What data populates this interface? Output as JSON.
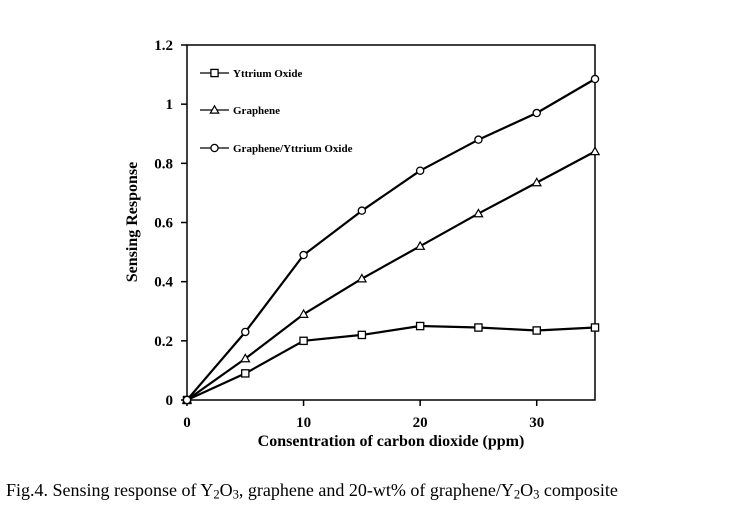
{
  "chart_data": {
    "type": "line",
    "title": "",
    "xlabel": "Consentration of carbon dioxide (ppm)",
    "ylabel": "Sensing Response",
    "xlim": [
      0,
      35
    ],
    "ylim": [
      0,
      1.2
    ],
    "xticks": [
      0,
      10,
      20,
      30
    ],
    "yticks": [
      0,
      0.2,
      0.4,
      0.6,
      0.8,
      1,
      1.2
    ],
    "xtick_labels": [
      "0",
      "10",
      "20",
      "30"
    ],
    "ytick_labels": [
      "0",
      "0.2",
      "0.4",
      "0.6",
      "0.8",
      "1",
      "1.2"
    ],
    "grid": false,
    "legend_position": "top-left",
    "x": [
      0,
      5,
      10,
      15,
      20,
      25,
      30,
      35
    ],
    "series": [
      {
        "name": "Yttrium Oxide",
        "marker": "square",
        "values": [
          0,
          0.09,
          0.2,
          0.22,
          0.25,
          0.245,
          0.235,
          0.245
        ]
      },
      {
        "name": "Graphene",
        "marker": "triangle",
        "values": [
          0,
          0.14,
          0.29,
          0.41,
          0.52,
          0.63,
          0.735,
          0.84
        ]
      },
      {
        "name": "Graphene/Yttrium Oxide",
        "marker": "circle",
        "values": [
          0,
          0.23,
          0.49,
          0.64,
          0.775,
          0.88,
          0.97,
          1.085
        ]
      }
    ]
  },
  "caption": {
    "prefix": "Fig.4. Sensing response of Y",
    "sub1": "2",
    "part2": "O",
    "sub2": "3",
    "part3": ", graphene and 20-wt% of graphene/Y",
    "sub3": "2",
    "part4": "O",
    "sub4": "3",
    "part5": " composite"
  }
}
